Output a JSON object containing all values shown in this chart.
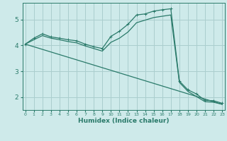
{
  "xlabel": "Humidex (Indice chaleur)",
  "background_color": "#ceeaea",
  "grid_color": "#aacece",
  "line_color": "#2a7a6a",
  "x_ticks": [
    0,
    1,
    2,
    3,
    4,
    5,
    6,
    7,
    8,
    9,
    10,
    11,
    12,
    13,
    14,
    15,
    16,
    17,
    18,
    19,
    20,
    21,
    22,
    23
  ],
  "y_ticks": [
    2,
    3,
    4,
    5
  ],
  "xlim": [
    -0.3,
    23.3
  ],
  "ylim": [
    1.5,
    5.65
  ],
  "line1_x": [
    0,
    1,
    2,
    3,
    4,
    5,
    6,
    7,
    8,
    9,
    10,
    11,
    12,
    13,
    14,
    15,
    16,
    17,
    18,
    19,
    20,
    21,
    22,
    23
  ],
  "line1_y": [
    4.05,
    4.28,
    4.45,
    4.33,
    4.28,
    4.22,
    4.18,
    4.05,
    3.95,
    3.88,
    4.35,
    4.55,
    4.82,
    5.18,
    5.22,
    5.33,
    5.38,
    5.42,
    2.62,
    2.28,
    2.12,
    1.87,
    1.86,
    1.76
  ],
  "line2_x": [
    0,
    1,
    2,
    3,
    4,
    5,
    6,
    7,
    8,
    9,
    10,
    11,
    12,
    13,
    14,
    15,
    16,
    17,
    18,
    19,
    20,
    21,
    22,
    23
  ],
  "line2_y": [
    4.05,
    4.22,
    4.38,
    4.28,
    4.22,
    4.15,
    4.1,
    3.98,
    3.88,
    3.78,
    4.12,
    4.28,
    4.52,
    4.88,
    4.98,
    5.08,
    5.13,
    5.18,
    2.57,
    2.22,
    2.02,
    1.82,
    1.8,
    1.72
  ],
  "line3_x": [
    0,
    23
  ],
  "line3_y": [
    4.05,
    1.72
  ]
}
